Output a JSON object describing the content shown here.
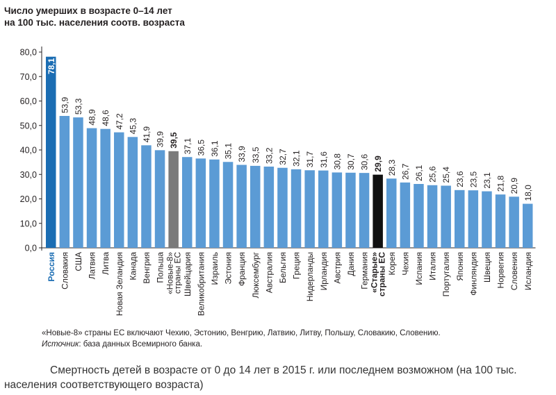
{
  "title_line1": "Число умерших в возрасте 0–14 лет",
  "title_line2": "на 100 тыс. населения соотв. возраста",
  "chart_data": {
    "type": "bar",
    "title": "Число умерших в возрасте 0–14 лет на 100 тыс. населения соотв. возраста",
    "xlabel": "",
    "ylabel": "",
    "ylim": [
      0,
      80
    ],
    "yticks": [
      "0,0",
      "10,0",
      "20,0",
      "30,0",
      "40,0",
      "50,0",
      "60,0",
      "70,0",
      "80,0"
    ],
    "grid": false,
    "categories": [
      "Россия",
      "Словакия",
      "США",
      "Латвия",
      "Литва",
      "Новая Зеландия",
      "Канада",
      "Венгрия",
      "Польша",
      "«Новые-8» страны ЕС",
      "Швейцария",
      "Великобритания",
      "Израиль",
      "Эстония",
      "Франция",
      "Люксембург",
      "Австралия",
      "Бельгия",
      "Греция",
      "Нидерланды",
      "Ирландия",
      "Австрия",
      "Дания",
      "Германия",
      "«Старые» страны ЕС",
      "Корея",
      "Чехия",
      "Испания",
      "Италия",
      "Португалия",
      "Япония",
      "Финляндия",
      "Швеция",
      "Норвегия",
      "Словения",
      "Исландия"
    ],
    "values": [
      78.1,
      53.9,
      53.3,
      48.9,
      48.6,
      47.2,
      45.3,
      41.9,
      39.9,
      39.5,
      37.1,
      36.5,
      36.1,
      35.1,
      33.9,
      33.5,
      33.2,
      32.7,
      32.1,
      31.7,
      31.6,
      30.8,
      30.7,
      30.6,
      29.9,
      28.3,
      26.7,
      26.1,
      25.6,
      25.4,
      23.6,
      23.5,
      23.1,
      21.8,
      20.9,
      18.0
    ],
    "value_labels": [
      "78,1",
      "53,9",
      "53,3",
      "48,9",
      "48,6",
      "47,2",
      "45,3",
      "41,9",
      "39,9",
      "39,5",
      "37,1",
      "36,5",
      "36,1",
      "35,1",
      "33,9",
      "33,5",
      "33,2",
      "32,7",
      "32,1",
      "31,7",
      "31,6",
      "30,8",
      "30,7",
      "30,6",
      "29,9",
      "28,3",
      "26,7",
      "26,1",
      "25,6",
      "25,4",
      "23,6",
      "23,5",
      "23,1",
      "21,8",
      "20,9",
      "18,0"
    ],
    "category_label_lines": [
      [
        "Россия"
      ],
      [
        "Словакия"
      ],
      [
        "США"
      ],
      [
        "Латвия"
      ],
      [
        "Литва"
      ],
      [
        "Новая Зеландия"
      ],
      [
        "Канада"
      ],
      [
        "Венгрия"
      ],
      [
        "Польша"
      ],
      [
        "«Новые-8»",
        "страны ЕС"
      ],
      [
        "Швейцария"
      ],
      [
        "Великобритания"
      ],
      [
        "Израиль"
      ],
      [
        "Эстония"
      ],
      [
        "Франция"
      ],
      [
        "Люксембург"
      ],
      [
        "Австралия"
      ],
      [
        "Бельгия"
      ],
      [
        "Греция"
      ],
      [
        "Нидерланды"
      ],
      [
        "Ирландия"
      ],
      [
        "Австрия"
      ],
      [
        "Дания"
      ],
      [
        "Германия"
      ],
      [
        "«Старые»",
        "страны ЕС"
      ],
      [
        "Корея"
      ],
      [
        "Чехия"
      ],
      [
        "Испания"
      ],
      [
        "Италия"
      ],
      [
        "Португалия"
      ],
      [
        "Япония"
      ],
      [
        "Финляндия"
      ],
      [
        "Швеция"
      ],
      [
        "Норвегия"
      ],
      [
        "Словения"
      ],
      [
        "Исландия"
      ]
    ],
    "highlight": {
      "Россия": "russia",
      "«Новые-8» страны ЕС": "new8",
      "«Старые» страны ЕС": "old"
    },
    "colors": {
      "default": "#5b9bd5",
      "russia": "#1b6db3",
      "new8": "#7a7a7a",
      "old": "#111111",
      "russia_label": "#1b6db3",
      "axis": "#231f20"
    }
  },
  "footnote_line1": "«Новые-8» страны ЕС включают Чехию, Эстонию, Венгрию, Латвию, Литву, Польшу, Словакию, Словению.",
  "footnote_source_label": "Источник",
  "footnote_source_text": ": база данных Всемирного банка.",
  "caption": "Смертность детей в возрасте от 0 до 14 лет в 2015 г. или последнем возможном (на 100 тыс. населения соответствующего возраста)"
}
